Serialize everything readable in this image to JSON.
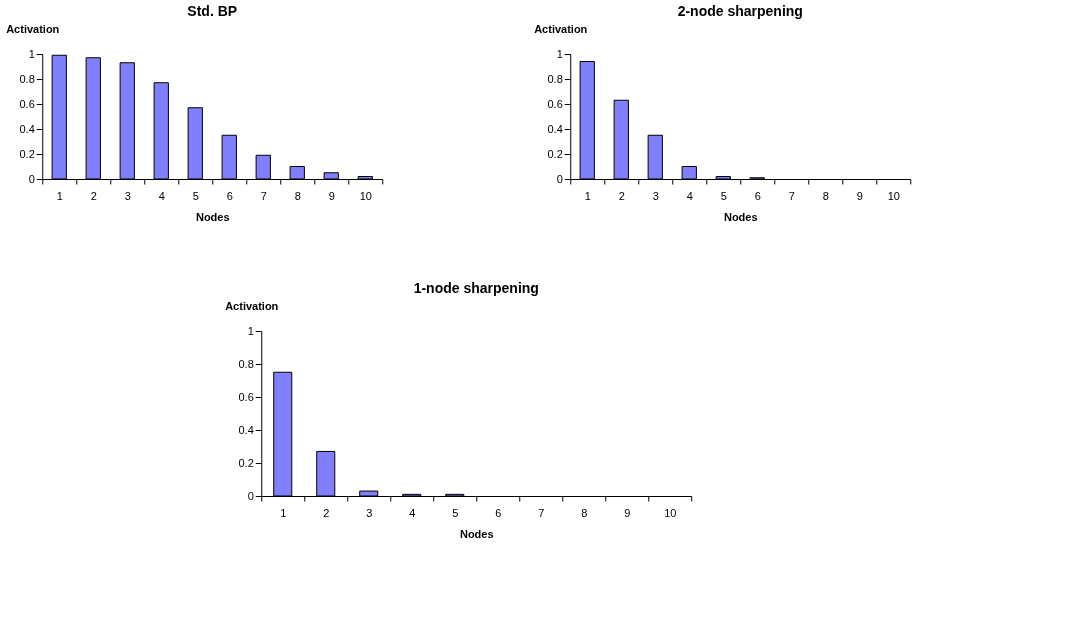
{
  "chart_data": [
    {
      "type": "bar",
      "title": "Std. BP",
      "xlabel": "Nodes",
      "ylabel": "Activation",
      "categories": [
        "1",
        "2",
        "3",
        "4",
        "5",
        "6",
        "7",
        "8",
        "9",
        "10"
      ],
      "values": [
        0.99,
        0.97,
        0.93,
        0.77,
        0.57,
        0.35,
        0.19,
        0.1,
        0.05,
        0.02
      ],
      "color": "#8080ff",
      "ylim": [
        0,
        1
      ],
      "yticks": [
        0,
        0.2,
        0.4,
        0.6,
        0.8,
        1
      ],
      "grid": false
    },
    {
      "type": "bar",
      "title": "2-node sharpening",
      "xlabel": "Nodes",
      "ylabel": "Activation",
      "categories": [
        "1",
        "2",
        "3",
        "4",
        "5",
        "6",
        "7",
        "8",
        "9",
        "10"
      ],
      "values": [
        0.94,
        0.63,
        0.35,
        0.1,
        0.02,
        0.01,
        null,
        null,
        null,
        null
      ],
      "color": "#8080ff",
      "ylim": [
        0,
        1
      ],
      "yticks": [
        0,
        0.2,
        0.4,
        0.6,
        0.8,
        1
      ],
      "grid": false
    },
    {
      "type": "bar",
      "title": "1-node sharpening",
      "xlabel": "Nodes",
      "ylabel": "Activation",
      "categories": [
        "1",
        "2",
        "3",
        "4",
        "5",
        "6",
        "7",
        "8",
        "9",
        "10"
      ],
      "values": [
        0.75,
        0.27,
        0.03,
        0.01,
        0.01,
        null,
        null,
        null,
        null,
        null
      ],
      "color": "#8080ff",
      "ylim": [
        0,
        1
      ],
      "yticks": [
        0,
        0.2,
        0.4,
        0.6,
        0.8,
        1
      ],
      "grid": false
    }
  ]
}
